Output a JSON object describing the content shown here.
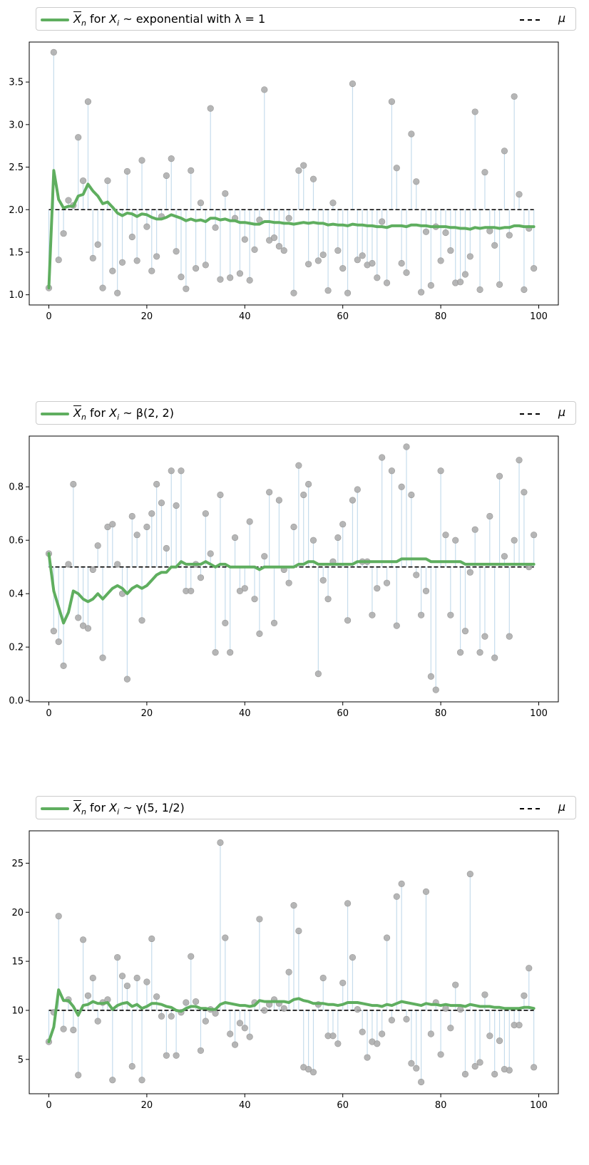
{
  "chart_data": [
    {
      "type": "line",
      "legend": {
        "mean_label": "X̄n for Xi ~ exponential with λ = 1",
        "mean_label_rest": " for ",
        "mean_label_dist": "exponential with λ = 1",
        "mu_label": "μ",
        "placement": "top, outside"
      },
      "mu": 2.0,
      "xlim": [
        -4,
        104
      ],
      "ylim": [
        0.88,
        3.97
      ],
      "xticks": [
        0,
        20,
        40,
        60,
        80,
        100
      ],
      "yticks": [
        1.0,
        1.5,
        2.0,
        2.5,
        3.0,
        3.5
      ],
      "ytick_labels": [
        "1.0",
        "1.5",
        "2.0",
        "2.5",
        "3.0",
        "3.5"
      ],
      "samples": [
        1.08,
        3.85,
        1.41,
        1.72,
        2.11,
        2.05,
        2.85,
        2.34,
        3.27,
        1.43,
        1.59,
        1.08,
        2.34,
        1.28,
        1.02,
        1.38,
        2.45,
        1.68,
        1.4,
        2.58,
        1.8,
        1.28,
        1.45,
        1.92,
        2.4,
        2.6,
        1.51,
        1.21,
        1.07,
        2.46,
        1.31,
        2.08,
        1.35,
        3.19,
        1.79,
        1.18,
        2.19,
        1.2,
        1.9,
        1.25,
        1.65,
        1.17,
        1.53,
        1.88,
        3.41,
        1.64,
        1.67,
        1.57,
        1.52,
        1.9,
        1.02,
        2.46,
        2.52,
        1.36,
        2.36,
        1.4,
        1.47,
        1.05,
        2.08,
        1.52,
        1.31,
        1.02,
        3.48,
        1.41,
        1.46,
        1.35,
        1.37,
        1.2,
        1.86,
        1.14,
        3.27,
        2.49,
        1.37,
        1.26,
        2.89,
        2.33,
        1.03,
        1.74,
        1.11,
        1.8,
        1.4,
        1.73,
        1.52,
        1.14,
        1.15,
        1.24,
        1.45,
        3.15,
        1.06,
        2.44,
        1.75,
        1.58,
        1.12,
        2.69,
        1.7,
        3.33,
        2.18,
        1.06,
        1.78,
        1.31
      ],
      "running_mean": [
        1.08,
        2.46,
        2.12,
        2.02,
        2.04,
        2.04,
        2.16,
        2.18,
        2.3,
        2.22,
        2.16,
        2.07,
        2.09,
        2.03,
        1.96,
        1.93,
        1.96,
        1.95,
        1.92,
        1.95,
        1.94,
        1.91,
        1.89,
        1.89,
        1.91,
        1.94,
        1.92,
        1.9,
        1.87,
        1.89,
        1.87,
        1.88,
        1.86,
        1.9,
        1.9,
        1.88,
        1.89,
        1.87,
        1.87,
        1.85,
        1.85,
        1.84,
        1.83,
        1.83,
        1.86,
        1.86,
        1.85,
        1.85,
        1.84,
        1.84,
        1.83,
        1.84,
        1.85,
        1.84,
        1.85,
        1.84,
        1.84,
        1.82,
        1.83,
        1.82,
        1.82,
        1.81,
        1.83,
        1.82,
        1.82,
        1.81,
        1.81,
        1.8,
        1.8,
        1.79,
        1.81,
        1.81,
        1.81,
        1.8,
        1.82,
        1.82,
        1.81,
        1.81,
        1.8,
        1.8,
        1.8,
        1.8,
        1.79,
        1.79,
        1.78,
        1.78,
        1.77,
        1.79,
        1.78,
        1.79,
        1.79,
        1.79,
        1.78,
        1.79,
        1.79,
        1.81,
        1.81,
        1.8,
        1.8,
        1.8
      ]
    },
    {
      "type": "line",
      "legend": {
        "mean_label": "X̄n for Xi ~ β(2, 2)",
        "mean_label_rest": " for ",
        "mean_label_dist": "β(2, 2)",
        "mu_label": "μ",
        "placement": "top, outside"
      },
      "mu": 0.5,
      "xlim": [
        -4,
        104
      ],
      "ylim": [
        -0.005,
        0.99
      ],
      "xticks": [
        0,
        20,
        40,
        60,
        80,
        100
      ],
      "yticks": [
        0.0,
        0.2,
        0.4,
        0.6,
        0.8
      ],
      "ytick_labels": [
        "0.0",
        "0.2",
        "0.4",
        "0.6",
        "0.8"
      ],
      "samples": [
        0.55,
        0.26,
        0.22,
        0.13,
        0.51,
        0.81,
        0.31,
        0.28,
        0.27,
        0.49,
        0.58,
        0.16,
        0.65,
        0.66,
        0.51,
        0.4,
        0.08,
        0.69,
        0.62,
        0.3,
        0.65,
        0.7,
        0.81,
        0.74,
        0.57,
        0.86,
        0.73,
        0.86,
        0.41,
        0.41,
        0.51,
        0.46,
        0.7,
        0.55,
        0.18,
        0.77,
        0.29,
        0.18,
        0.61,
        0.41,
        0.42,
        0.67,
        0.38,
        0.25,
        0.54,
        0.78,
        0.29,
        0.75,
        0.49,
        0.44,
        0.65,
        0.88,
        0.77,
        0.81,
        0.6,
        0.1,
        0.45,
        0.38,
        0.52,
        0.61,
        0.66,
        0.3,
        0.75,
        0.79,
        0.52,
        0.52,
        0.32,
        0.42,
        0.91,
        0.44,
        0.86,
        0.28,
        0.8,
        0.95,
        0.77,
        0.47,
        0.32,
        0.41,
        0.09,
        0.04,
        0.86,
        0.62,
        0.32,
        0.6,
        0.18,
        0.26,
        0.48,
        0.64,
        0.18,
        0.24,
        0.69,
        0.16,
        0.84,
        0.54,
        0.24,
        0.6,
        0.9,
        0.78,
        0.5,
        0.62
      ],
      "running_mean": [
        0.55,
        0.41,
        0.35,
        0.29,
        0.33,
        0.41,
        0.4,
        0.38,
        0.37,
        0.38,
        0.4,
        0.38,
        0.4,
        0.42,
        0.43,
        0.42,
        0.4,
        0.42,
        0.43,
        0.42,
        0.43,
        0.45,
        0.47,
        0.48,
        0.48,
        0.5,
        0.5,
        0.52,
        0.51,
        0.51,
        0.51,
        0.51,
        0.52,
        0.51,
        0.5,
        0.51,
        0.51,
        0.5,
        0.5,
        0.5,
        0.5,
        0.5,
        0.5,
        0.49,
        0.5,
        0.5,
        0.5,
        0.5,
        0.5,
        0.5,
        0.5,
        0.51,
        0.51,
        0.52,
        0.52,
        0.51,
        0.51,
        0.51,
        0.51,
        0.51,
        0.51,
        0.51,
        0.51,
        0.52,
        0.52,
        0.52,
        0.52,
        0.52,
        0.52,
        0.52,
        0.52,
        0.52,
        0.53,
        0.53,
        0.53,
        0.53,
        0.53,
        0.53,
        0.52,
        0.52,
        0.52,
        0.52,
        0.52,
        0.52,
        0.52,
        0.51,
        0.51,
        0.51,
        0.51,
        0.51,
        0.51,
        0.51,
        0.51,
        0.51,
        0.51,
        0.51,
        0.51,
        0.51,
        0.51,
        0.51
      ]
    },
    {
      "type": "line",
      "legend": {
        "mean_label": "X̄n for Xi ~ γ(5, 1/2)",
        "mean_label_rest": " for ",
        "mean_label_dist": "γ(5, 1/2)",
        "mu_label": "μ",
        "placement": "top, outside"
      },
      "mu": 10.0,
      "xlim": [
        -4,
        104
      ],
      "ylim": [
        1.5,
        28.3
      ],
      "xticks": [
        0,
        20,
        40,
        60,
        80,
        100
      ],
      "yticks": [
        5,
        10,
        15,
        20,
        25
      ],
      "ytick_labels": [
        "5",
        "10",
        "15",
        "20",
        "25"
      ],
      "samples": [
        6.8,
        9.8,
        19.6,
        8.1,
        11.1,
        8.0,
        3.4,
        17.2,
        11.5,
        13.3,
        8.9,
        10.8,
        11.1,
        2.9,
        15.4,
        13.5,
        12.5,
        4.3,
        13.3,
        2.9,
        12.9,
        17.3,
        11.4,
        9.4,
        5.4,
        9.4,
        5.4,
        9.8,
        10.8,
        15.5,
        10.9,
        5.9,
        8.9,
        10.1,
        9.7,
        27.1,
        17.4,
        7.6,
        6.5,
        8.7,
        8.2,
        7.3,
        10.8,
        19.3,
        10.0,
        10.6,
        11.1,
        10.7,
        10.2,
        13.9,
        20.7,
        18.1,
        4.2,
        4.0,
        3.7,
        10.6,
        13.3,
        7.4,
        7.4,
        6.6,
        12.8,
        20.9,
        15.4,
        10.1,
        7.8,
        5.2,
        6.8,
        6.6,
        7.6,
        17.4,
        9.0,
        21.6,
        22.9,
        9.1,
        4.6,
        4.1,
        2.7,
        22.1,
        7.6,
        10.8,
        5.5,
        10.2,
        8.2,
        12.6,
        10.1,
        3.5,
        23.9,
        4.3,
        4.7,
        11.6,
        7.4,
        3.5,
        6.9,
        4.0,
        3.9,
        8.5,
        8.5,
        11.5,
        14.3,
        4.2
      ],
      "running_mean": [
        6.8,
        8.3,
        12.1,
        11.0,
        11.0,
        10.4,
        9.5,
        10.5,
        10.6,
        10.9,
        10.7,
        10.7,
        10.8,
        10.1,
        10.5,
        10.7,
        10.8,
        10.4,
        10.6,
        10.2,
        10.4,
        10.7,
        10.7,
        10.6,
        10.4,
        10.3,
        10.0,
        9.9,
        10.2,
        10.4,
        10.4,
        10.2,
        10.2,
        10.1,
        10.1,
        10.6,
        10.8,
        10.7,
        10.6,
        10.5,
        10.5,
        10.4,
        10.5,
        11.0,
        10.9,
        10.9,
        10.9,
        10.9,
        10.9,
        10.8,
        11.1,
        11.2,
        11.0,
        10.9,
        10.7,
        10.7,
        10.7,
        10.6,
        10.6,
        10.5,
        10.6,
        10.8,
        10.8,
        10.8,
        10.7,
        10.6,
        10.5,
        10.5,
        10.4,
        10.6,
        10.5,
        10.7,
        10.9,
        10.8,
        10.7,
        10.6,
        10.5,
        10.7,
        10.6,
        10.6,
        10.5,
        10.6,
        10.5,
        10.5,
        10.5,
        10.4,
        10.6,
        10.5,
        10.4,
        10.4,
        10.4,
        10.3,
        10.3,
        10.2,
        10.2,
        10.2,
        10.2,
        10.3,
        10.3,
        10.2
      ]
    }
  ],
  "colors": {
    "mean_line": "#5fae5f",
    "sample_dots": "#a9a9a9",
    "stems": "#c6dcec",
    "mu_line": "#000000"
  }
}
